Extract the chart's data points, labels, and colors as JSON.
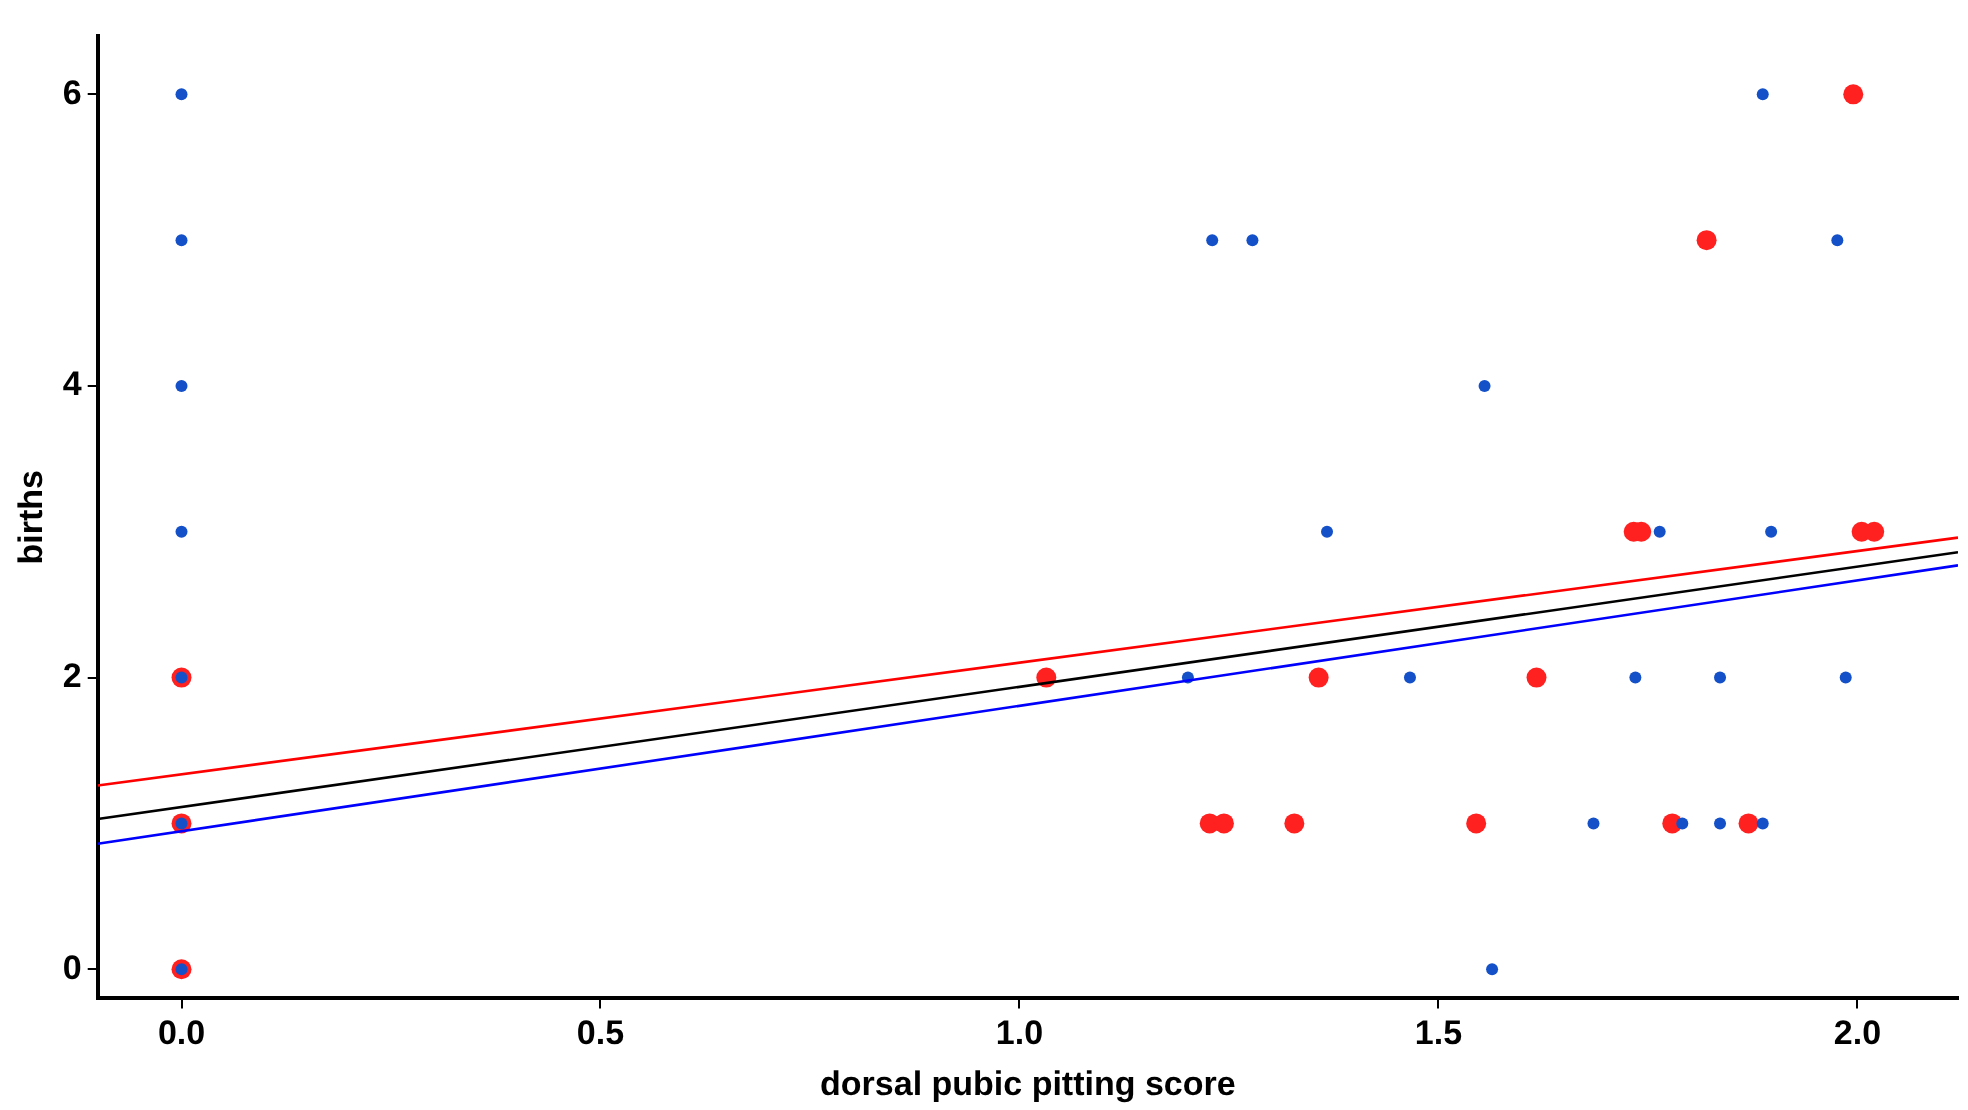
{
  "chart_data": {
    "type": "scatter",
    "xlabel": "dorsal pubic pitting score",
    "ylabel": "births",
    "xlim": [
      -0.1,
      2.12
    ],
    "ylim": [
      -0.2,
      6.4
    ],
    "xticks": [
      {
        "value": 0,
        "label": "0.0"
      },
      {
        "value": 0.5,
        "label": "0.5"
      },
      {
        "value": 1,
        "label": "1.0"
      },
      {
        "value": 1.5,
        "label": "1.5"
      },
      {
        "value": 2,
        "label": "2.0"
      }
    ],
    "yticks": [
      0,
      2,
      4,
      6
    ],
    "grid": false,
    "legend": false,
    "marker": "circle",
    "series": [
      {
        "color": "#ff2020",
        "x": [
          0,
          0,
          0,
          1.995,
          1.82,
          1.733,
          1.742,
          2.005,
          2.02,
          1.032,
          1.357,
          1.617,
          1.227,
          1.244,
          1.328,
          1.545,
          1.779,
          1.87
        ],
        "values": [
          0,
          1,
          2,
          6,
          5,
          3,
          3,
          3,
          3,
          2,
          2,
          2,
          1,
          1,
          1,
          1,
          1,
          1
        ]
      },
      {
        "color": "#1450c8",
        "x": [
          0,
          0,
          0,
          0,
          0,
          0,
          0,
          1.887,
          1.23,
          1.278,
          1.976,
          1.555,
          1.367,
          1.764,
          1.897,
          1.201,
          1.466,
          1.735,
          1.836,
          1.986,
          1.685,
          1.791,
          1.836,
          1.887,
          1.564
        ],
        "values": [
          0,
          1,
          2,
          3,
          4,
          5,
          6,
          6,
          5,
          5,
          5,
          4,
          3,
          3,
          3,
          2,
          2,
          2,
          2,
          2,
          1,
          1,
          1,
          1,
          0
        ]
      },
      {
        "type": "line",
        "color": "#ff0000",
        "x": [
          -0.1,
          2.12
        ],
        "values": [
          1.26,
          2.96
        ],
        "marker": "none"
      },
      {
        "type": "line",
        "color": "#000000",
        "x": [
          -0.1,
          2.12
        ],
        "values": [
          1.03,
          2.86
        ],
        "marker": "none"
      },
      {
        "type": "line",
        "color": "#0000ff",
        "x": [
          -0.1,
          2.12
        ],
        "values": [
          0.86,
          2.77
        ],
        "marker": "none"
      }
    ]
  }
}
